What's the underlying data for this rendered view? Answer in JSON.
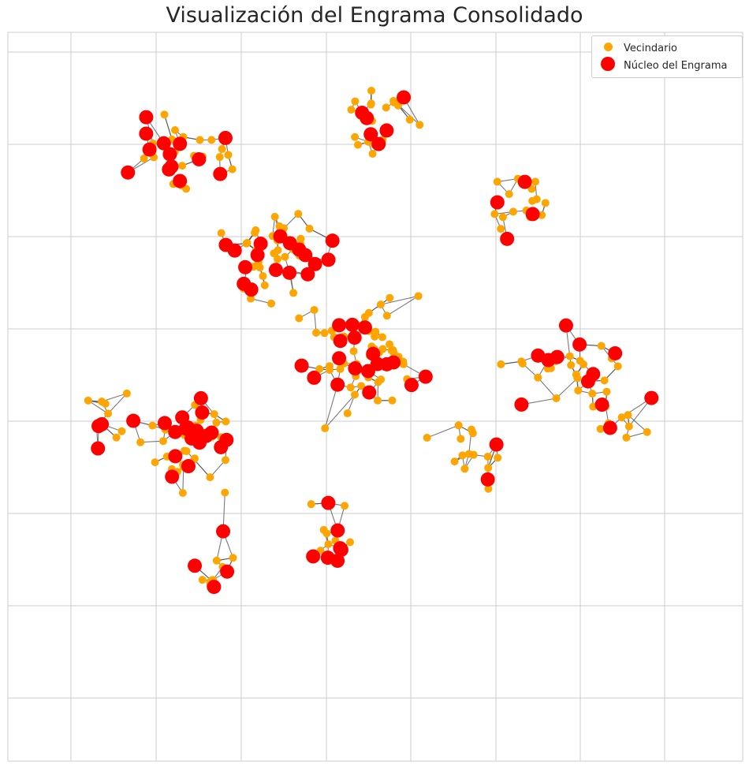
{
  "chart_data": {
    "type": "scatter",
    "title": "Visualización del Engrama Consolidado",
    "xlabel": "",
    "ylabel": "",
    "grid": true,
    "legend_placement": "top-right",
    "colors": {
      "neighborhood": "#FFA500",
      "core": "#FF0000",
      "edge": "#4d4d4d",
      "grid": "#cccccc"
    },
    "series": [
      {
        "name": "Vecindario",
        "color": "#FFA500",
        "x": [],
        "y": []
      },
      {
        "name": "Núcleo del Engrama",
        "color": "#FF0000",
        "x": [],
        "y": []
      }
    ],
    "edges": []
  }
}
